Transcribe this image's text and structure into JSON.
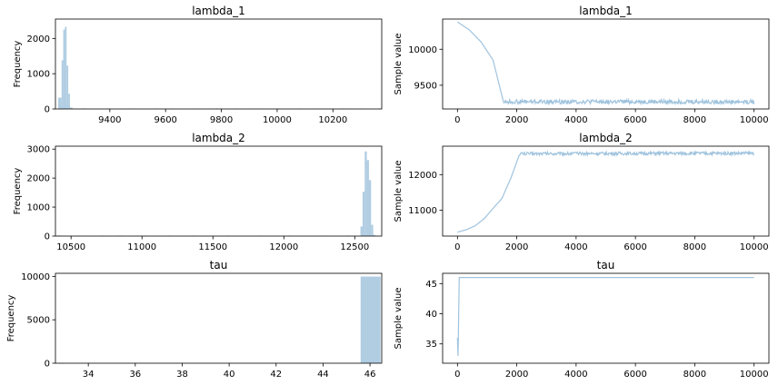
{
  "colors": {
    "bar": "#b0cde2",
    "trace": "#9fc3de",
    "axis": "#000000"
  },
  "chart_data": [
    {
      "type": "bar",
      "title": "lambda_1",
      "xlabel": "",
      "ylabel": "Frequency",
      "xlim": [
        9205,
        10375
      ],
      "ylim": [
        0,
        2550
      ],
      "xticks": [
        9400,
        9600,
        9800,
        10000,
        10200
      ],
      "yticks": [
        0,
        1000,
        2000
      ],
      "bins": [
        {
          "x0": 9215,
          "x1": 9227,
          "v": 320
        },
        {
          "x0": 9227,
          "x1": 9233,
          "v": 1380
        },
        {
          "x0": 9233,
          "x1": 9239,
          "v": 2250
        },
        {
          "x0": 9239,
          "x1": 9245,
          "v": 2330
        },
        {
          "x0": 9245,
          "x1": 9251,
          "v": 1230
        },
        {
          "x0": 9251,
          "x1": 9257,
          "v": 430
        },
        {
          "x0": 9257,
          "x1": 9266,
          "v": 40
        },
        {
          "x0": 9300,
          "x1": 9310,
          "v": 15
        },
        {
          "x0": 9480,
          "x1": 9490,
          "v": 12
        },
        {
          "x0": 9560,
          "x1": 9570,
          "v": 12
        },
        {
          "x0": 9620,
          "x1": 9630,
          "v": 10
        },
        {
          "x0": 9700,
          "x1": 9710,
          "v": 10
        },
        {
          "x0": 9780,
          "x1": 9790,
          "v": 12
        },
        {
          "x0": 9850,
          "x1": 9860,
          "v": 10
        },
        {
          "x0": 9920,
          "x1": 9930,
          "v": 10
        },
        {
          "x0": 10000,
          "x1": 10010,
          "v": 12
        },
        {
          "x0": 10080,
          "x1": 10090,
          "v": 10
        },
        {
          "x0": 10150,
          "x1": 10160,
          "v": 10
        },
        {
          "x0": 10230,
          "x1": 10240,
          "v": 10
        },
        {
          "x0": 10300,
          "x1": 10310,
          "v": 10
        },
        {
          "x0": 10360,
          "x1": 10370,
          "v": 12
        }
      ]
    },
    {
      "type": "line",
      "title": "lambda_1",
      "xlabel": "",
      "ylabel": "Sample value",
      "xlim": [
        -500,
        10500
      ],
      "ylim": [
        9170,
        10420
      ],
      "xticks": [
        0,
        2000,
        4000,
        6000,
        8000,
        10000
      ],
      "yticks": [
        9500,
        10000
      ],
      "anchors": [
        [
          0,
          10380
        ],
        [
          400,
          10270
        ],
        [
          800,
          10100
        ],
        [
          1200,
          9850
        ],
        [
          1550,
          9270
        ],
        [
          10000,
          9270
        ]
      ],
      "noise_from": 1550,
      "noise_amp": 30
    },
    {
      "type": "bar",
      "title": "lambda_2",
      "xlabel": "",
      "ylabel": "Frequency",
      "xlim": [
        10390,
        12690
      ],
      "ylim": [
        0,
        3100
      ],
      "xticks": [
        10500,
        11000,
        11500,
        12000,
        12500
      ],
      "yticks": [
        0,
        1000,
        2000,
        3000
      ],
      "bins": [
        {
          "x0": 10400,
          "x1": 10430,
          "v": 20
        },
        {
          "x0": 10540,
          "x1": 10570,
          "v": 15
        },
        {
          "x0": 10700,
          "x1": 10730,
          "v": 15
        },
        {
          "x0": 10830,
          "x1": 10860,
          "v": 12
        },
        {
          "x0": 11010,
          "x1": 11040,
          "v": 12
        },
        {
          "x0": 11180,
          "x1": 11210,
          "v": 12
        },
        {
          "x0": 11350,
          "x1": 11380,
          "v": 12
        },
        {
          "x0": 11590,
          "x1": 11620,
          "v": 15
        },
        {
          "x0": 11810,
          "x1": 11840,
          "v": 12
        },
        {
          "x0": 12030,
          "x1": 12060,
          "v": 12
        },
        {
          "x0": 12260,
          "x1": 12290,
          "v": 12
        },
        {
          "x0": 12440,
          "x1": 12470,
          "v": 15
        },
        {
          "x0": 12540,
          "x1": 12555,
          "v": 330
        },
        {
          "x0": 12555,
          "x1": 12570,
          "v": 1530
        },
        {
          "x0": 12570,
          "x1": 12585,
          "v": 2920
        },
        {
          "x0": 12585,
          "x1": 12600,
          "v": 2620
        },
        {
          "x0": 12600,
          "x1": 12615,
          "v": 1930
        },
        {
          "x0": 12615,
          "x1": 12630,
          "v": 390
        },
        {
          "x0": 12630,
          "x1": 12645,
          "v": 40
        }
      ]
    },
    {
      "type": "line",
      "title": "lambda_2",
      "xlabel": "",
      "ylabel": "Sample value",
      "xlim": [
        -500,
        10500
      ],
      "ylim": [
        10270,
        12800
      ],
      "xticks": [
        0,
        2000,
        4000,
        6000,
        8000,
        10000
      ],
      "yticks": [
        11000,
        12000
      ],
      "anchors": [
        [
          0,
          10380
        ],
        [
          300,
          10450
        ],
        [
          600,
          10560
        ],
        [
          900,
          10760
        ],
        [
          1200,
          11050
        ],
        [
          1500,
          11330
        ],
        [
          1800,
          11900
        ],
        [
          2100,
          12590
        ],
        [
          10000,
          12600
        ]
      ],
      "noise_from": 2100,
      "noise_amp": 45
    },
    {
      "type": "bar",
      "title": "tau",
      "xlabel": "",
      "ylabel": "Frequency",
      "xlim": [
        32.6,
        46.5
      ],
      "ylim": [
        0,
        10350
      ],
      "xticks": [
        34,
        36,
        38,
        40,
        42,
        44,
        46
      ],
      "yticks": [
        0,
        5000,
        10000
      ],
      "bins": [
        {
          "x0": 32.7,
          "x1": 33.0,
          "v": 5
        },
        {
          "x0": 45.6,
          "x1": 46.45,
          "v": 9980
        }
      ]
    },
    {
      "type": "line",
      "title": "tau",
      "xlabel": "",
      "ylabel": "Sample value",
      "xlim": [
        -500,
        10500
      ],
      "ylim": [
        31.8,
        46.7
      ],
      "xticks": [
        0,
        2000,
        4000,
        6000,
        8000,
        10000
      ],
      "yticks": [
        35,
        40,
        45
      ],
      "anchors": [
        [
          0,
          36
        ],
        [
          20,
          33
        ],
        [
          60,
          46
        ],
        [
          10000,
          46
        ]
      ],
      "noise_from": 10001,
      "noise_amp": 0
    }
  ]
}
